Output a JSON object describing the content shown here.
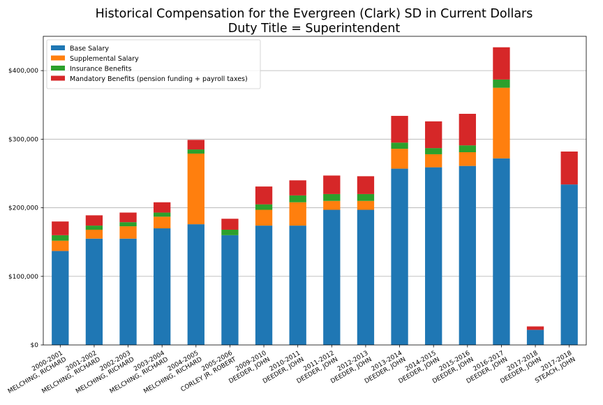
{
  "chart_data": {
    "type": "bar",
    "stacked": true,
    "title_line1": "Historical Compensation for the Evergreen (Clark) SD in Current Dollars",
    "title_line2": "Duty Title = Superintendent",
    "xlabel": "",
    "ylabel": "",
    "ylim": [
      0,
      450000
    ],
    "yticks": [
      0,
      100000,
      200000,
      300000,
      400000
    ],
    "ytick_labels": [
      "$0",
      "$100,000",
      "$200,000",
      "$300,000",
      "$400,000"
    ],
    "grid": "horizontal",
    "legend_position": "top-left",
    "categories": [
      {
        "year": "2000-2001",
        "name": "MELCHING, RICHARD"
      },
      {
        "year": "2001-2002",
        "name": "MELCHING, RICHARD"
      },
      {
        "year": "2002-2003",
        "name": "MELCHING, RICHARD"
      },
      {
        "year": "2003-2004",
        "name": "MELCHING, RICHARD"
      },
      {
        "year": "2004-2005",
        "name": "MELCHING, RICHARD"
      },
      {
        "year": "2005-2006",
        "name": "CORLEY JR, ROBERT"
      },
      {
        "year": "2009-2010",
        "name": "DEEDER, JOHN"
      },
      {
        "year": "2010-2011",
        "name": "DEEDER, JOHN"
      },
      {
        "year": "2011-2012",
        "name": "DEEDER, JOHN"
      },
      {
        "year": "2012-2013",
        "name": "DEEDER, JOHN"
      },
      {
        "year": "2013-2014",
        "name": "DEEDER, JOHN"
      },
      {
        "year": "2014-2015",
        "name": "DEEDER, JOHN"
      },
      {
        "year": "2015-2016",
        "name": "DEEDER, JOHN"
      },
      {
        "year": "2016-2017",
        "name": "DEEDER, JOHN"
      },
      {
        "year": "2017-2018",
        "name": "DEEDER, JOHN"
      },
      {
        "year": "2017-2018",
        "name": "STEACH, JOHN"
      }
    ],
    "series": [
      {
        "name": "Base Salary",
        "color": "#1f77b4",
        "values": [
          137000,
          155000,
          155000,
          170000,
          176000,
          160000,
          174000,
          174000,
          197000,
          197000,
          257000,
          259000,
          261000,
          272000,
          22000,
          234000
        ]
      },
      {
        "name": "Supplemental Salary",
        "color": "#ff7f0e",
        "values": [
          15000,
          13000,
          18000,
          17000,
          103000,
          0,
          23000,
          34000,
          13000,
          13000,
          29000,
          19000,
          20000,
          103000,
          0,
          0
        ]
      },
      {
        "name": "Insurance Benefits",
        "color": "#2ca02c",
        "values": [
          8000,
          6000,
          6000,
          6000,
          6000,
          8000,
          8000,
          10000,
          10000,
          10000,
          9000,
          9000,
          10000,
          12000,
          0,
          0
        ]
      },
      {
        "name": "Mandatory Benefits (pension funding + payroll taxes)",
        "color": "#d62728",
        "values": [
          20000,
          15000,
          14000,
          15000,
          14000,
          16000,
          26000,
          22000,
          27000,
          26000,
          39000,
          39000,
          46000,
          47000,
          5000,
          48000
        ]
      }
    ]
  }
}
